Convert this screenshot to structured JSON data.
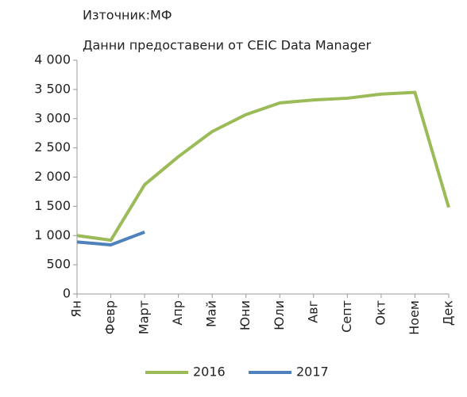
{
  "chart_data": {
    "type": "line",
    "title": "Източник:МФ",
    "subtitle": "Данни предоставени  от CEIC Data Manager",
    "categories": [
      "Ян",
      "Февр",
      "Март",
      "Апр",
      "Май",
      "Юни",
      "Юли",
      "Авг",
      "Септ",
      "Окт",
      "Ноем",
      "Дек"
    ],
    "series": [
      {
        "name": "2016",
        "color": "#9bbb59",
        "values": [
          1000,
          920,
          1870,
          2350,
          2780,
          3070,
          3270,
          3320,
          3350,
          3420,
          3450,
          1480
        ]
      },
      {
        "name": "2017",
        "color": "#4f81bd",
        "values": [
          890,
          840,
          1060,
          null,
          null,
          null,
          null,
          null,
          null,
          null,
          null,
          null
        ]
      }
    ],
    "ylim": [
      0,
      4000
    ],
    "yticks": [
      0,
      500,
      {
        "value": 1000,
        "label": "1 000"
      },
      {
        "value": 1500,
        "label": "1 500"
      },
      {
        "value": 2000,
        "label": "2 000"
      },
      {
        "value": 2500,
        "label": "2 500"
      },
      {
        "value": 3000,
        "label": "3 000"
      },
      {
        "value": 3500,
        "label": "3 500"
      },
      {
        "value": 4000,
        "label": "4 000"
      }
    ],
    "legend": "bottom"
  }
}
